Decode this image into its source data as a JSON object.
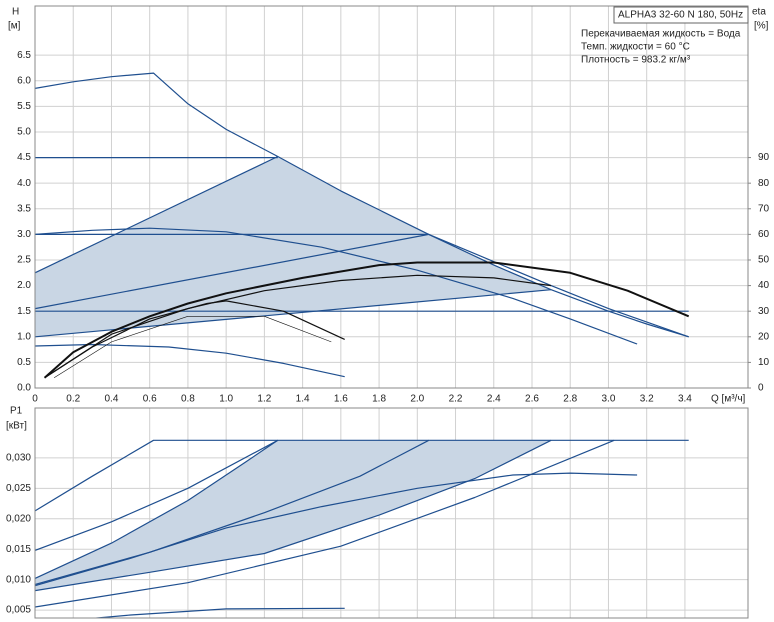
{
  "info": {
    "model": "ALPHA3 32-60 N 180, 50Hz",
    "liquid": "Перекачиваемая жидкость = Вода",
    "temperature": "Темп. жидкости = 60 °C",
    "density": "Плотность = 983.2 кг/м³"
  },
  "chart_data": [
    {
      "type": "line",
      "y_label": "H",
      "y_unit": "[м]",
      "y2_label": "eta",
      "y2_unit": "[%]",
      "x_label": "Q [м³/ч]",
      "xlim": [
        0,
        3.73
      ],
      "ylim": [
        0,
        7.46
      ],
      "y2lim": [
        0,
        149.2
      ],
      "grid": true,
      "xtick_labels": true,
      "xticks": [
        0,
        0.2,
        0.4,
        0.6,
        0.8,
        {
          "value": 1,
          "label": "1.0"
        },
        1.2,
        1.4,
        1.6,
        1.8,
        {
          "value": 2,
          "label": "2.0"
        },
        2.2,
        2.4,
        2.6,
        2.8,
        {
          "value": 3,
          "label": "3.0"
        },
        3.2,
        3.4
      ],
      "yticks": [
        {
          "value": 0,
          "label": "0.0"
        },
        0.5,
        {
          "value": 1,
          "label": "1.0"
        },
        1.5,
        {
          "value": 2,
          "label": "2.0"
        },
        2.5,
        {
          "value": 3,
          "label": "3.0"
        },
        3.5,
        {
          "value": 4,
          "label": "4.0"
        },
        4.5,
        {
          "value": 5,
          "label": "5.0"
        },
        5.5,
        {
          "value": 6,
          "label": "6.0"
        },
        6.5
      ],
      "y2ticks": [
        0,
        10,
        20,
        30,
        40,
        50,
        60,
        70,
        80,
        90
      ],
      "series": [
        {
          "color": "#c9d6e4",
          "fill": true,
          "x": [
            0,
            1.27,
            1.6,
            2.06,
            2.4,
            2.7,
            0
          ],
          "values": [
            2.25,
            4.52,
            3.85,
            3.0,
            2.4,
            1.92,
            1.0
          ]
        },
        {
          "color": "#1f4f8f",
          "x": [
            0,
            0.2,
            0.4,
            0.62,
            0.8,
            1.0,
            1.27,
            1.6,
            2.06,
            2.4,
            2.7,
            3.0,
            3.2,
            3.42
          ],
          "values": [
            5.85,
            5.98,
            6.08,
            6.15,
            5.55,
            5.05,
            4.52,
            3.85,
            3.0,
            2.4,
            1.92,
            1.5,
            1.25,
            1.0
          ]
        },
        {
          "color": "#1f4f8f",
          "x": [
            0,
            1.27
          ],
          "values": [
            4.5,
            4.5
          ]
        },
        {
          "color": "#1f4f8f",
          "x": [
            0,
            2.06
          ],
          "values": [
            3.0,
            3.0
          ]
        },
        {
          "color": "#1f4f8f",
          "x": [
            0,
            3.42
          ],
          "values": [
            1.5,
            1.5
          ]
        },
        {
          "color": "#1f4f8f",
          "x": [
            0,
            1.27
          ],
          "values": [
            2.25,
            4.52
          ]
        },
        {
          "color": "#1f4f8f",
          "x": [
            0,
            2.06
          ],
          "values": [
            1.55,
            3.0
          ]
        },
        {
          "color": "#1f4f8f",
          "x": [
            0,
            2.7
          ],
          "values": [
            1.0,
            1.92
          ]
        },
        {
          "color": "#1f4f8f",
          "x": [
            2.06,
            2.7,
            3.0,
            3.42
          ],
          "values": [
            3.0,
            2.0,
            1.55,
            1.0
          ]
        },
        {
          "color": "#1f4f8f",
          "x": [
            0,
            0.3,
            0.6,
            1.0,
            1.5,
            2.0,
            2.5,
            2.8,
            3.15
          ],
          "values": [
            3.0,
            3.08,
            3.12,
            3.05,
            2.75,
            2.3,
            1.75,
            1.35,
            0.86
          ]
        },
        {
          "color": "#1f4f8f",
          "x": [
            0,
            0.3,
            0.7,
            1.0,
            1.3,
            1.62
          ],
          "values": [
            0.82,
            0.85,
            0.8,
            0.68,
            0.48,
            0.22
          ]
        },
        {
          "color": "#111111",
          "axis": "y2",
          "width": 2,
          "x": [
            0.05,
            0.2,
            0.4,
            0.6,
            0.8,
            1.0,
            1.4,
            1.8,
            2.0,
            2.4,
            2.8,
            3.1,
            3.42
          ],
          "values": [
            4,
            14,
            22,
            28,
            33,
            37,
            43,
            48,
            49,
            49,
            45,
            38,
            28
          ]
        },
        {
          "color": "#111111",
          "axis": "y2",
          "width": 1.2,
          "x": [
            0.05,
            0.4,
            0.8,
            1.2,
            1.6,
            2.0,
            2.4,
            2.7
          ],
          "values": [
            4,
            21,
            31,
            38,
            42,
            44,
            43,
            40
          ]
        },
        {
          "color": "#111111",
          "axis": "y2",
          "width": 1.2,
          "x": [
            0.05,
            0.3,
            0.6,
            0.9,
            1.0,
            1.3,
            1.62
          ],
          "values": [
            4,
            16,
            27,
            33,
            34,
            30,
            19
          ]
        },
        {
          "color": "#111111",
          "axis": "y2",
          "width": 0.6,
          "x": [
            0.1,
            0.4,
            0.8,
            1.2,
            1.55
          ],
          "values": [
            4,
            18,
            28,
            28,
            18
          ]
        }
      ]
    },
    {
      "type": "line",
      "y_label": "P1",
      "y_unit": "[кВт]",
      "xlim": [
        0,
        3.73
      ],
      "ylim": [
        0.0037,
        0.0382
      ],
      "grid": true,
      "xtick_labels": false,
      "xticks": [
        0,
        0.2,
        0.4,
        0.6,
        0.8,
        1,
        1.2,
        1.4,
        1.6,
        1.8,
        2,
        2.2,
        2.4,
        2.6,
        2.8,
        3,
        3.2,
        3.4
      ],
      "yticks": [
        {
          "value": 0.005,
          "label": "0,005"
        },
        {
          "value": 0.01,
          "label": "0,010"
        },
        {
          "value": 0.015,
          "label": "0,015"
        },
        {
          "value": 0.02,
          "label": "0,020"
        },
        {
          "value": 0.025,
          "label": "0,025"
        },
        {
          "value": 0.03,
          "label": "0,030"
        }
      ],
      "series": [
        {
          "color": "#c9d6e4",
          "fill": true,
          "x": [
            0,
            0.4,
            0.8,
            1.1,
            1.27,
            2.7,
            2.3,
            1.8,
            1.2,
            0.6,
            0
          ],
          "values": [
            0.0102,
            0.016,
            0.023,
            0.0293,
            0.0329,
            0.0329,
            0.0266,
            0.0206,
            0.0143,
            0.0112,
            0.0082
          ]
        },
        {
          "color": "#1f4f8f",
          "x": [
            0,
            0.3,
            0.62,
            3.42
          ],
          "values": [
            0.0213,
            0.027,
            0.0329,
            0.0329
          ]
        },
        {
          "color": "#1f4f8f",
          "x": [
            0,
            0.4,
            0.8,
            1.27
          ],
          "values": [
            0.0148,
            0.0195,
            0.025,
            0.0329
          ]
        },
        {
          "color": "#1f4f8f",
          "x": [
            0,
            0.4,
            0.8,
            1.1,
            1.27
          ],
          "values": [
            0.0102,
            0.016,
            0.023,
            0.0293,
            0.0329
          ]
        },
        {
          "color": "#1f4f8f",
          "x": [
            0,
            0.6,
            1.2,
            1.7,
            2.06
          ],
          "values": [
            0.0092,
            0.0145,
            0.021,
            0.027,
            0.0329
          ]
        },
        {
          "color": "#1f4f8f",
          "x": [
            0,
            0.6,
            1.2,
            1.8,
            2.3,
            2.7
          ],
          "values": [
            0.0082,
            0.0112,
            0.0143,
            0.0206,
            0.0266,
            0.0329
          ]
        },
        {
          "color": "#1f4f8f",
          "x": [
            0,
            0.8,
            1.6,
            2.3,
            3.03
          ],
          "values": [
            0.0055,
            0.0095,
            0.0155,
            0.0235,
            0.0329
          ]
        },
        {
          "color": "#1f4f8f",
          "x": [
            0,
            0.5,
            1.0,
            1.5,
            2.0,
            2.5,
            2.8,
            3.15
          ],
          "values": [
            0.009,
            0.0135,
            0.0185,
            0.022,
            0.025,
            0.0272,
            0.0275,
            0.0272
          ]
        },
        {
          "color": "#1f4f8f",
          "x": [
            0,
            0.5,
            1.0,
            1.62
          ],
          "values": [
            0.0028,
            0.0042,
            0.0052,
            0.0053
          ]
        }
      ]
    }
  ]
}
